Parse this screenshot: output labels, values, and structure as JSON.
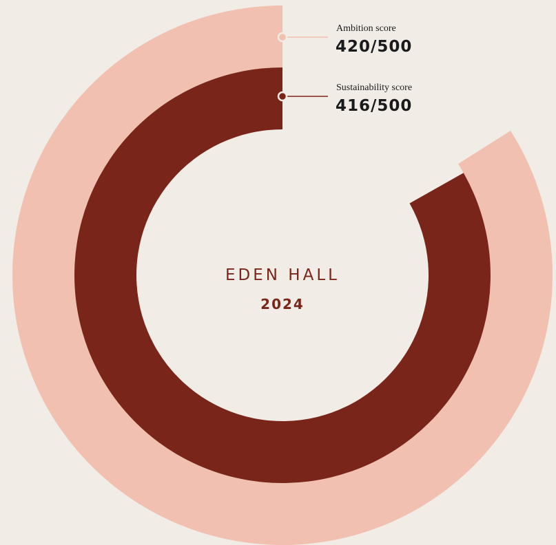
{
  "chart_data": {
    "type": "radial-bar",
    "title": "EDEN HALL",
    "subtitle": "2024",
    "categories": [
      "Ambition score",
      "Sustainability score"
    ],
    "values": [
      420,
      416
    ],
    "value_labels": [
      "420/500",
      "416/500"
    ],
    "colors": [
      "#f1c0b0",
      "#7a251a"
    ],
    "xlim": [
      0,
      500
    ]
  }
}
